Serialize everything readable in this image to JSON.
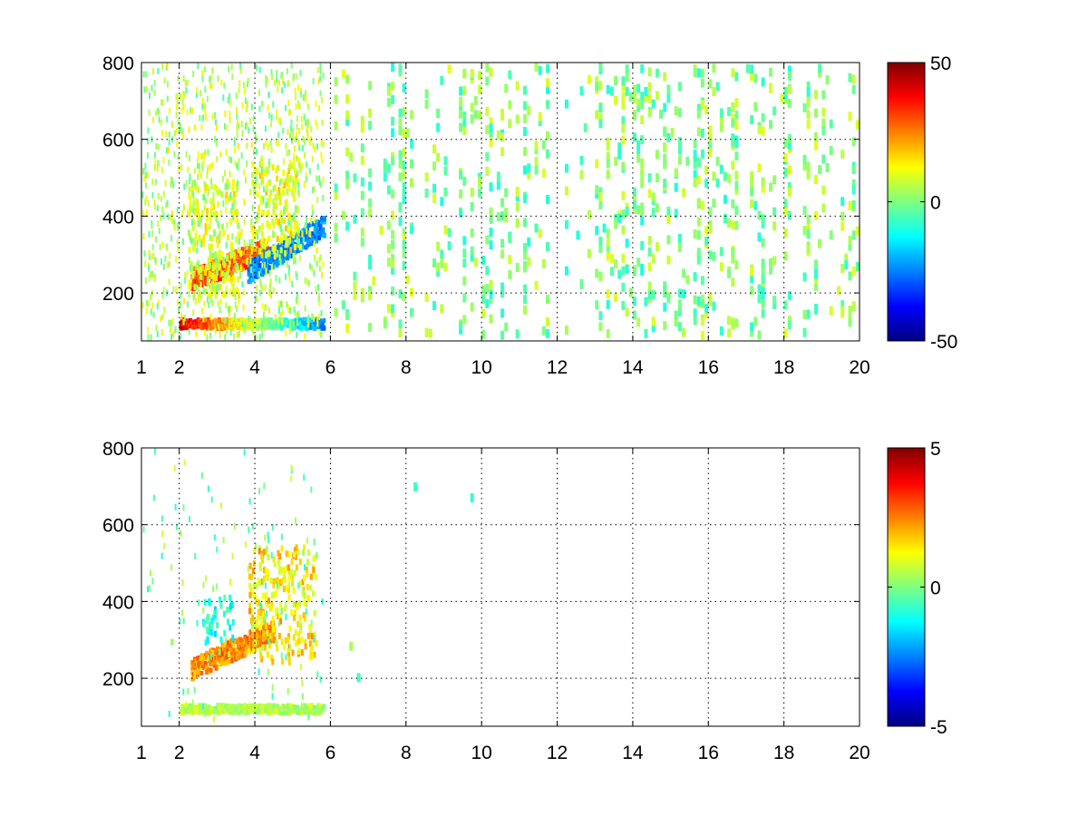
{
  "chart_data": [
    {
      "type": "heatmap",
      "title": "",
      "xlabel": "",
      "ylabel": "",
      "xlim": [
        1,
        20
      ],
      "ylim": [
        75,
        800
      ],
      "x_ticks": [
        1,
        2,
        4,
        6,
        8,
        10,
        12,
        14,
        16,
        18,
        20
      ],
      "x_tick_labels": [
        "1",
        "2",
        "4",
        "6",
        "8",
        "10",
        "12",
        "14",
        "16",
        "18",
        "20"
      ],
      "y_ticks": [
        200,
        400,
        600,
        800
      ],
      "y_tick_labels": [
        "200",
        "400",
        "600",
        "800"
      ],
      "grid": true,
      "colormap": "jet",
      "colorbar": {
        "clim": [
          -50,
          50
        ],
        "ticks": [
          50,
          0,
          -50
        ],
        "tick_labels": [
          "50",
          "0",
          "-50"
        ]
      },
      "features": [
        {
          "kind": "band",
          "x_range": [
            2.0,
            5.8
          ],
          "y_center": 125,
          "y_width": 25,
          "value_start": 40,
          "value_end": -25
        },
        {
          "kind": "ridge",
          "x_range": [
            2.3,
            4.3
          ],
          "y_start": 240,
          "y_end": 320,
          "value": 35
        },
        {
          "kind": "ridge",
          "x_range": [
            3.8,
            5.8
          ],
          "y_start": 260,
          "y_end": 380,
          "value": -30
        },
        {
          "kind": "cloud",
          "x_range": [
            2.2,
            3.6
          ],
          "y_range": [
            200,
            500
          ],
          "value": 15
        },
        {
          "kind": "cloud",
          "x_range": [
            3.9,
            5.2
          ],
          "y_range": [
            300,
            550
          ],
          "value": 15
        },
        {
          "kind": "sparse_columns",
          "x_range": [
            6,
            20
          ],
          "values": [
            -10,
            10
          ]
        }
      ]
    },
    {
      "type": "heatmap",
      "title": "",
      "xlabel": "",
      "ylabel": "",
      "xlim": [
        1,
        20
      ],
      "ylim": [
        75,
        800
      ],
      "x_ticks": [
        1,
        2,
        4,
        6,
        8,
        10,
        12,
        14,
        16,
        18,
        20
      ],
      "x_tick_labels": [
        "1",
        "2",
        "4",
        "6",
        "8",
        "10",
        "12",
        "14",
        "16",
        "18",
        "20"
      ],
      "y_ticks": [
        200,
        400,
        600,
        800
      ],
      "y_tick_labels": [
        "200",
        "400",
        "600",
        "800"
      ],
      "grid": true,
      "colormap": "jet",
      "colorbar": {
        "clim": [
          -5,
          5
        ],
        "ticks": [
          5,
          0,
          -5
        ],
        "tick_labels": [
          "5",
          "0",
          "-5"
        ]
      },
      "features": [
        {
          "kind": "band",
          "x_range": [
            2.0,
            5.8
          ],
          "y_center": 125,
          "y_width": 22,
          "value_start": 0.5,
          "value_end": 0.5
        },
        {
          "kind": "ridge",
          "x_range": [
            2.3,
            4.5
          ],
          "y_start": 230,
          "y_end": 330,
          "value": 3
        },
        {
          "kind": "cloud",
          "x_range": [
            2.6,
            3.4
          ],
          "y_range": [
            300,
            420
          ],
          "value": -1.5
        },
        {
          "kind": "cloud",
          "x_range": [
            3.8,
            5.6
          ],
          "y_range": [
            250,
            550
          ],
          "value": 2
        },
        {
          "kind": "sparse_columns",
          "x_range": [
            6,
            11
          ],
          "values": [
            -1,
            1
          ]
        }
      ]
    }
  ]
}
